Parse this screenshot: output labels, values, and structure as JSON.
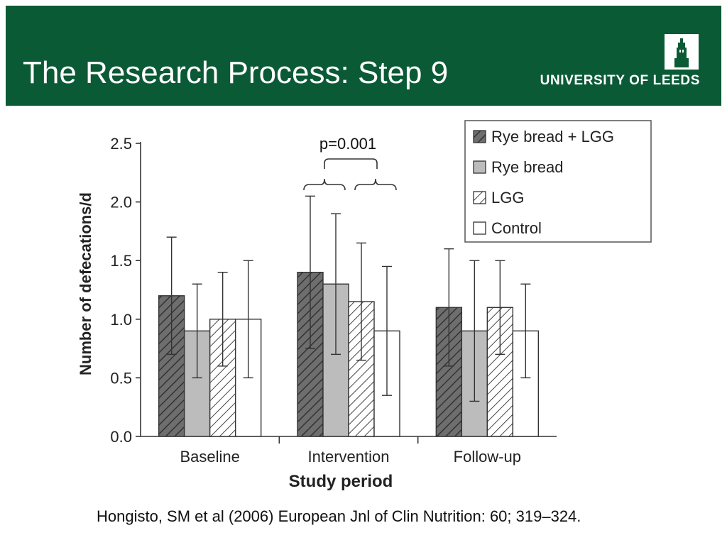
{
  "slide": {
    "title": "The Research Process: Step 9",
    "logo_text": "UNIVERSITY OF LEEDS",
    "logo_icon": "university-tower-icon",
    "citation": "Hongisto, SM et al (2006) European Jnl of Clin Nutrition: 60; 319–324."
  },
  "colors": {
    "header_bg": "#0b5a36",
    "rye_lgg": "#6e6e6e",
    "rye": "#bcbcbc",
    "lgg": "#ffffff",
    "control": "#ffffff"
  },
  "chart_data": {
    "type": "bar",
    "xlabel": "Study period",
    "ylabel": "Number of defecations/d",
    "ylim": [
      0,
      2.5
    ],
    "yticks": [
      "0.0",
      "0.5",
      "1.0",
      "1.5",
      "2.0",
      "2.5"
    ],
    "categories": [
      "Baseline",
      "Intervention",
      "Follow-up"
    ],
    "series": [
      {
        "name": "Rye bread + LGG",
        "pattern": "dark-hatch",
        "values": [
          1.2,
          1.4,
          1.1
        ],
        "err_low": [
          0.7,
          0.75,
          0.6
        ],
        "err_high": [
          1.7,
          2.05,
          1.6
        ]
      },
      {
        "name": "Rye bread",
        "pattern": "grey",
        "values": [
          0.9,
          1.3,
          0.9
        ],
        "err_low": [
          0.5,
          0.7,
          0.3
        ],
        "err_high": [
          1.3,
          1.9,
          1.5
        ]
      },
      {
        "name": "LGG",
        "pattern": "white-hatch",
        "values": [
          1.0,
          1.15,
          1.1
        ],
        "err_low": [
          0.6,
          0.65,
          0.7
        ],
        "err_high": [
          1.4,
          1.65,
          1.5
        ]
      },
      {
        "name": "Control",
        "pattern": "white",
        "values": [
          1.0,
          0.9,
          0.9
        ],
        "err_low": [
          0.5,
          0.35,
          0.5
        ],
        "err_high": [
          1.5,
          1.45,
          1.3
        ]
      }
    ],
    "annotation": "p=0.001",
    "legend_position": "top-right",
    "grid": false
  }
}
